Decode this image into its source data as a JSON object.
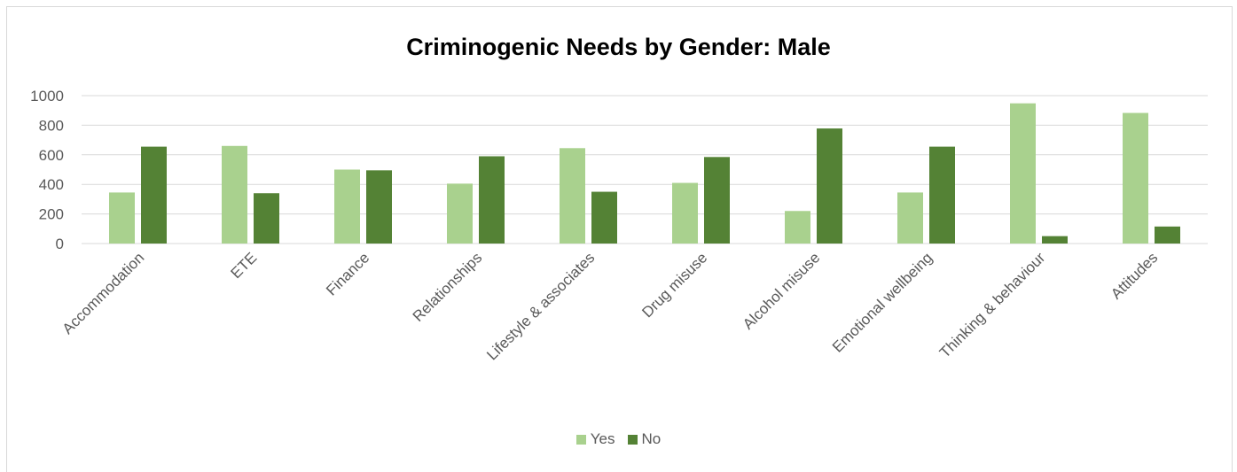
{
  "chart_data": {
    "type": "bar",
    "title": "Criminogenic Needs by Gender: Male",
    "categories": [
      "Accommodation",
      "ETE",
      "Finance",
      "Relationships",
      "Lifestyle & associates",
      "Drug misuse",
      "Alcohol misuse",
      "Emotional wellbeing",
      "Thinking & behaviour",
      "Attitudes"
    ],
    "series": [
      {
        "name": "Yes",
        "color": "#a9d18e",
        "values": [
          345,
          660,
          500,
          405,
          645,
          410,
          220,
          345,
          948,
          883
        ]
      },
      {
        "name": "No",
        "color": "#548235",
        "values": [
          655,
          340,
          495,
          590,
          350,
          585,
          778,
          655,
          50,
          115
        ]
      }
    ],
    "ylim": [
      0,
      1000
    ],
    "yticks": [
      0,
      200,
      400,
      600,
      800,
      1000
    ],
    "grid": true,
    "legend": "bottom"
  }
}
